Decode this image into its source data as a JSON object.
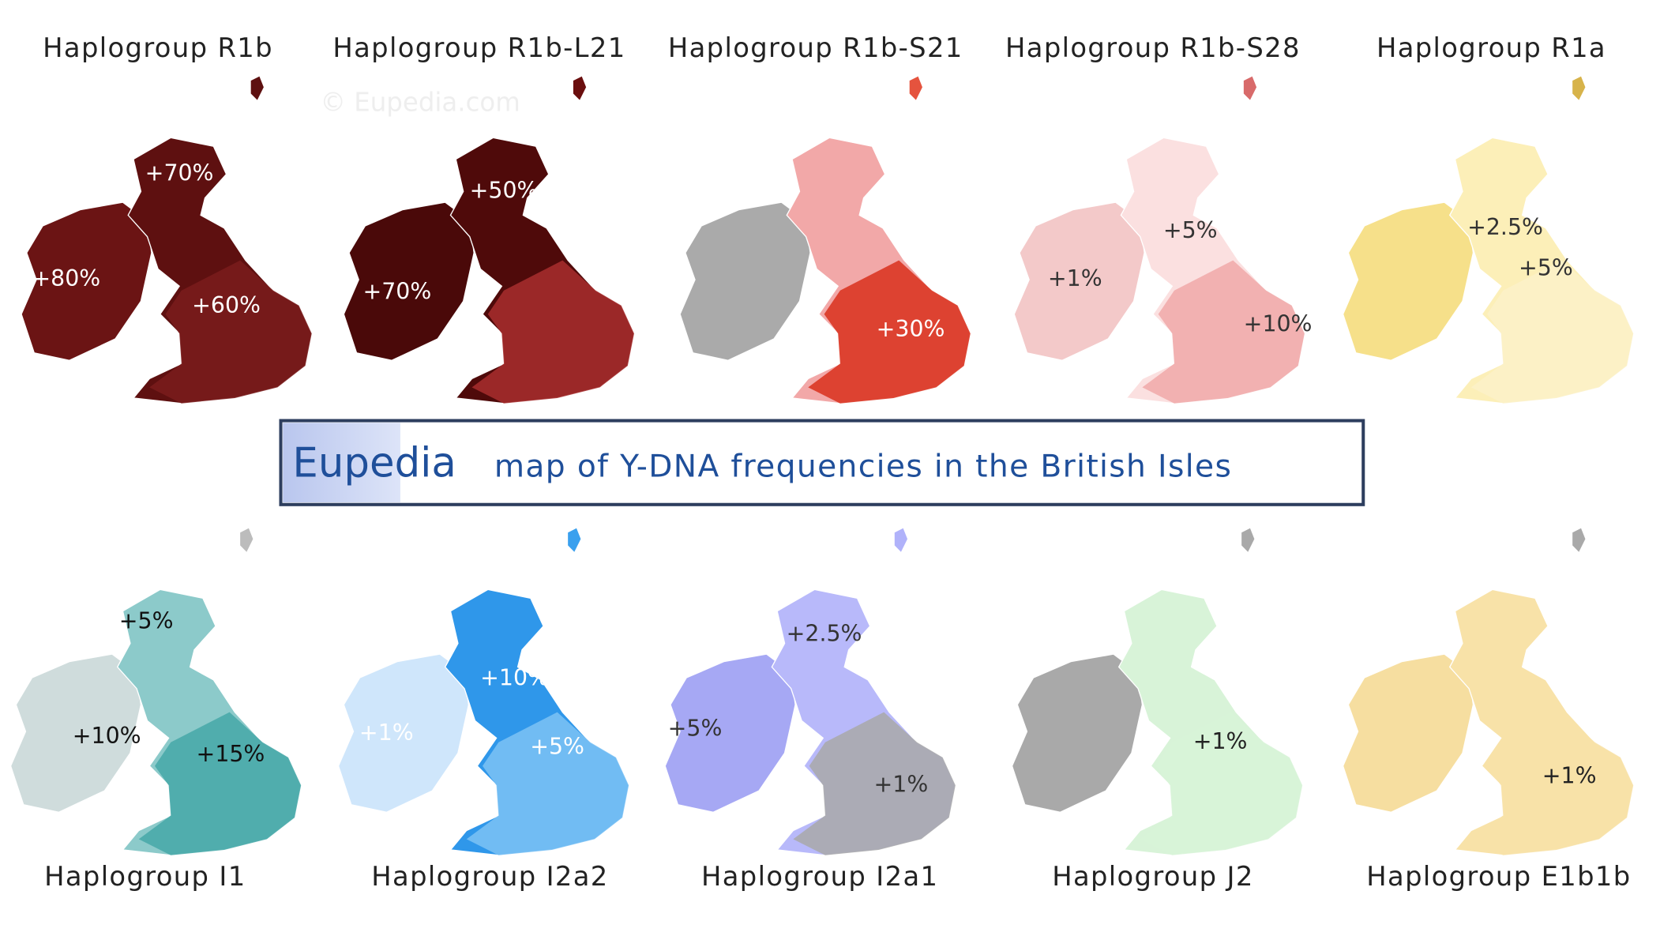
{
  "top_maps": [
    {
      "title": "Haplogroup R1b",
      "labels": [
        "+70%",
        "+80%",
        "+60%"
      ]
    },
    {
      "title": "Haplogroup R1b-L21",
      "labels": [
        "+50%",
        "+70%"
      ]
    },
    {
      "title": "Haplogroup R1b-S21",
      "labels": [
        "+30%"
      ]
    },
    {
      "title": "Haplogroup R1b-S28",
      "labels": [
        "+5%",
        "+1%",
        "+10%"
      ]
    },
    {
      "title": "Haplogroup R1a",
      "labels": [
        "+2.5%",
        "+5%"
      ]
    }
  ],
  "watermark": "© Eupedia.com",
  "banner": {
    "brand": "Eupedia",
    "text": "map of Y-DNA frequencies in the British Isles"
  },
  "bottom_maps": [
    {
      "title": "Haplogroup I1",
      "labels": [
        "+5%",
        "+10%",
        "+15%"
      ]
    },
    {
      "title": "Haplogroup I2a2",
      "labels": [
        "+1%",
        "+10%",
        "+5%"
      ]
    },
    {
      "title": "Haplogroup I2a1",
      "labels": [
        "+2.5%",
        "+5%",
        "+1%"
      ]
    },
    {
      "title": "Haplogroup J2",
      "labels": [
        "+1%"
      ]
    },
    {
      "title": "Haplogroup E1b1b",
      "labels": [
        "+1%"
      ]
    }
  ]
}
